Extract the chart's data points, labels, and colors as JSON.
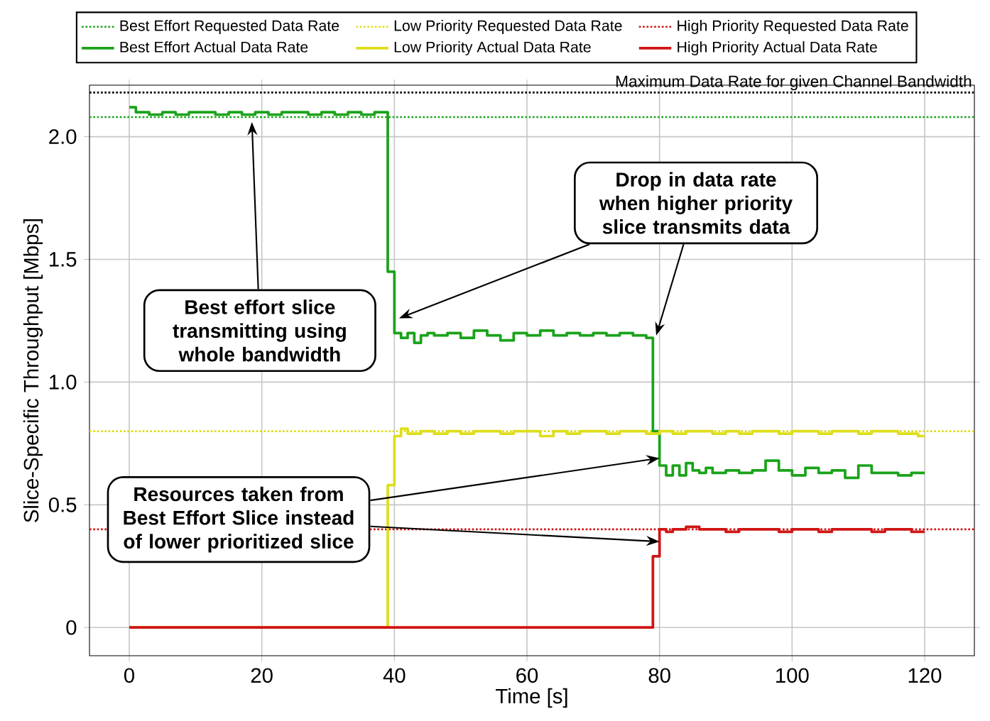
{
  "chart_data": {
    "type": "step",
    "xlabel": "Time [s]",
    "ylabel": "Slice-Specific Throughput [Mbps]",
    "xlim": [
      -6,
      127.5
    ],
    "ylim": [
      -0.115,
      2.21
    ],
    "xticks": [
      0,
      20,
      40,
      60,
      80,
      100,
      120
    ],
    "yticks": [
      0,
      0.5,
      {
        "value": 1,
        "label": "1.0"
      },
      1.5,
      {
        "value": 2,
        "label": "2.0"
      }
    ],
    "grid": true,
    "legend": "top",
    "series": [
      {
        "name": "Best Effort Requested Data Rate",
        "type": "line",
        "line_style": "dotted",
        "color": "#1aa31a",
        "x": [
          -6,
          127.5
        ],
        "values": [
          2.08,
          2.08
        ]
      },
      {
        "name": "Low Priority Requested Data Rate",
        "type": "line",
        "line_style": "dotted",
        "color": "#dede1a",
        "x": [
          -6,
          127.5
        ],
        "values": [
          0.8,
          0.8
        ]
      },
      {
        "name": "High Priority Requested Data Rate",
        "type": "line",
        "line_style": "dotted",
        "color": "#d01515",
        "x": [
          -6,
          127.5
        ],
        "values": [
          0.4,
          0.4
        ]
      },
      {
        "name": "Best Effort Actual Data Rate",
        "color": "#1aa31a",
        "x": [
          0,
          1,
          3,
          5,
          7,
          9,
          11,
          13,
          15,
          17,
          19,
          21,
          23,
          25,
          27,
          29,
          31,
          33,
          35,
          37,
          39,
          40,
          41,
          42,
          43,
          44,
          45,
          46,
          48,
          50,
          52,
          54,
          56,
          58,
          60,
          62,
          64,
          66,
          68,
          70,
          72,
          74,
          76,
          78,
          79,
          80,
          81,
          82,
          83,
          84,
          85,
          86,
          87,
          88,
          90,
          92,
          94,
          96,
          98,
          100,
          102,
          104,
          106,
          108,
          110,
          112,
          114,
          116,
          118,
          120
        ],
        "values": [
          2.12,
          2.1,
          2.09,
          2.1,
          2.09,
          2.1,
          2.1,
          2.09,
          2.1,
          2.09,
          2.1,
          2.09,
          2.1,
          2.1,
          2.09,
          2.1,
          2.09,
          2.1,
          2.09,
          2.1,
          1.45,
          1.2,
          1.18,
          1.2,
          1.16,
          1.19,
          1.2,
          1.19,
          1.2,
          1.18,
          1.21,
          1.19,
          1.17,
          1.2,
          1.19,
          1.21,
          1.19,
          1.2,
          1.19,
          1.2,
          1.19,
          1.2,
          1.19,
          1.18,
          0.8,
          0.66,
          0.62,
          0.66,
          0.62,
          0.67,
          0.64,
          0.63,
          0.65,
          0.63,
          0.64,
          0.63,
          0.64,
          0.68,
          0.64,
          0.62,
          0.65,
          0.63,
          0.64,
          0.61,
          0.66,
          0.63,
          0.63,
          0.62,
          0.63,
          0.63
        ]
      },
      {
        "name": "Low Priority Actual Data Rate",
        "color": "#dede1a",
        "x": [
          0,
          39,
          40,
          41,
          42,
          44,
          46,
          48,
          50,
          52,
          54,
          56,
          58,
          60,
          62,
          64,
          66,
          68,
          70,
          72,
          74,
          76,
          78,
          80,
          82,
          84,
          86,
          88,
          90,
          92,
          94,
          96,
          98,
          100,
          102,
          104,
          106,
          108,
          110,
          112,
          114,
          116,
          118,
          119,
          120
        ],
        "values": [
          0,
          0.58,
          0.78,
          0.81,
          0.79,
          0.8,
          0.79,
          0.8,
          0.79,
          0.8,
          0.8,
          0.79,
          0.8,
          0.8,
          0.78,
          0.8,
          0.79,
          0.8,
          0.8,
          0.79,
          0.8,
          0.8,
          0.79,
          0.8,
          0.79,
          0.8,
          0.8,
          0.79,
          0.8,
          0.79,
          0.8,
          0.8,
          0.79,
          0.8,
          0.8,
          0.79,
          0.8,
          0.8,
          0.79,
          0.8,
          0.8,
          0.79,
          0.79,
          0.78,
          0.78
        ]
      },
      {
        "name": "High Priority Actual Data Rate",
        "color": "#d01515",
        "x": [
          0,
          79,
          80,
          81,
          82,
          84,
          86,
          88,
          90,
          92,
          94,
          96,
          98,
          100,
          102,
          104,
          106,
          108,
          110,
          112,
          114,
          116,
          118,
          120
        ],
        "values": [
          0,
          0.29,
          0.4,
          0.39,
          0.4,
          0.41,
          0.4,
          0.4,
          0.39,
          0.4,
          0.4,
          0.4,
          0.39,
          0.4,
          0.4,
          0.39,
          0.4,
          0.4,
          0.4,
          0.39,
          0.4,
          0.4,
          0.39,
          0.39
        ]
      }
    ],
    "ref_lines": [
      {
        "axis": "y",
        "value": 2.18,
        "label": "Maximum Data Rate for given Channel Bandwidth",
        "color": "#000000",
        "line_style": "dotted"
      }
    ],
    "annotations": [
      {
        "text": "Best effort slice transmitting using whole bandwidth",
        "x": 18.5,
        "y": 2.06
      },
      {
        "text": "Drop in data rate when higher priority slice transmits data",
        "x": 40.7,
        "y": 1.26
      },
      {
        "text": "Resources taken from Best Effort Slice instead of lower prioritized slice",
        "x": 80,
        "y": 0.69
      }
    ]
  }
}
